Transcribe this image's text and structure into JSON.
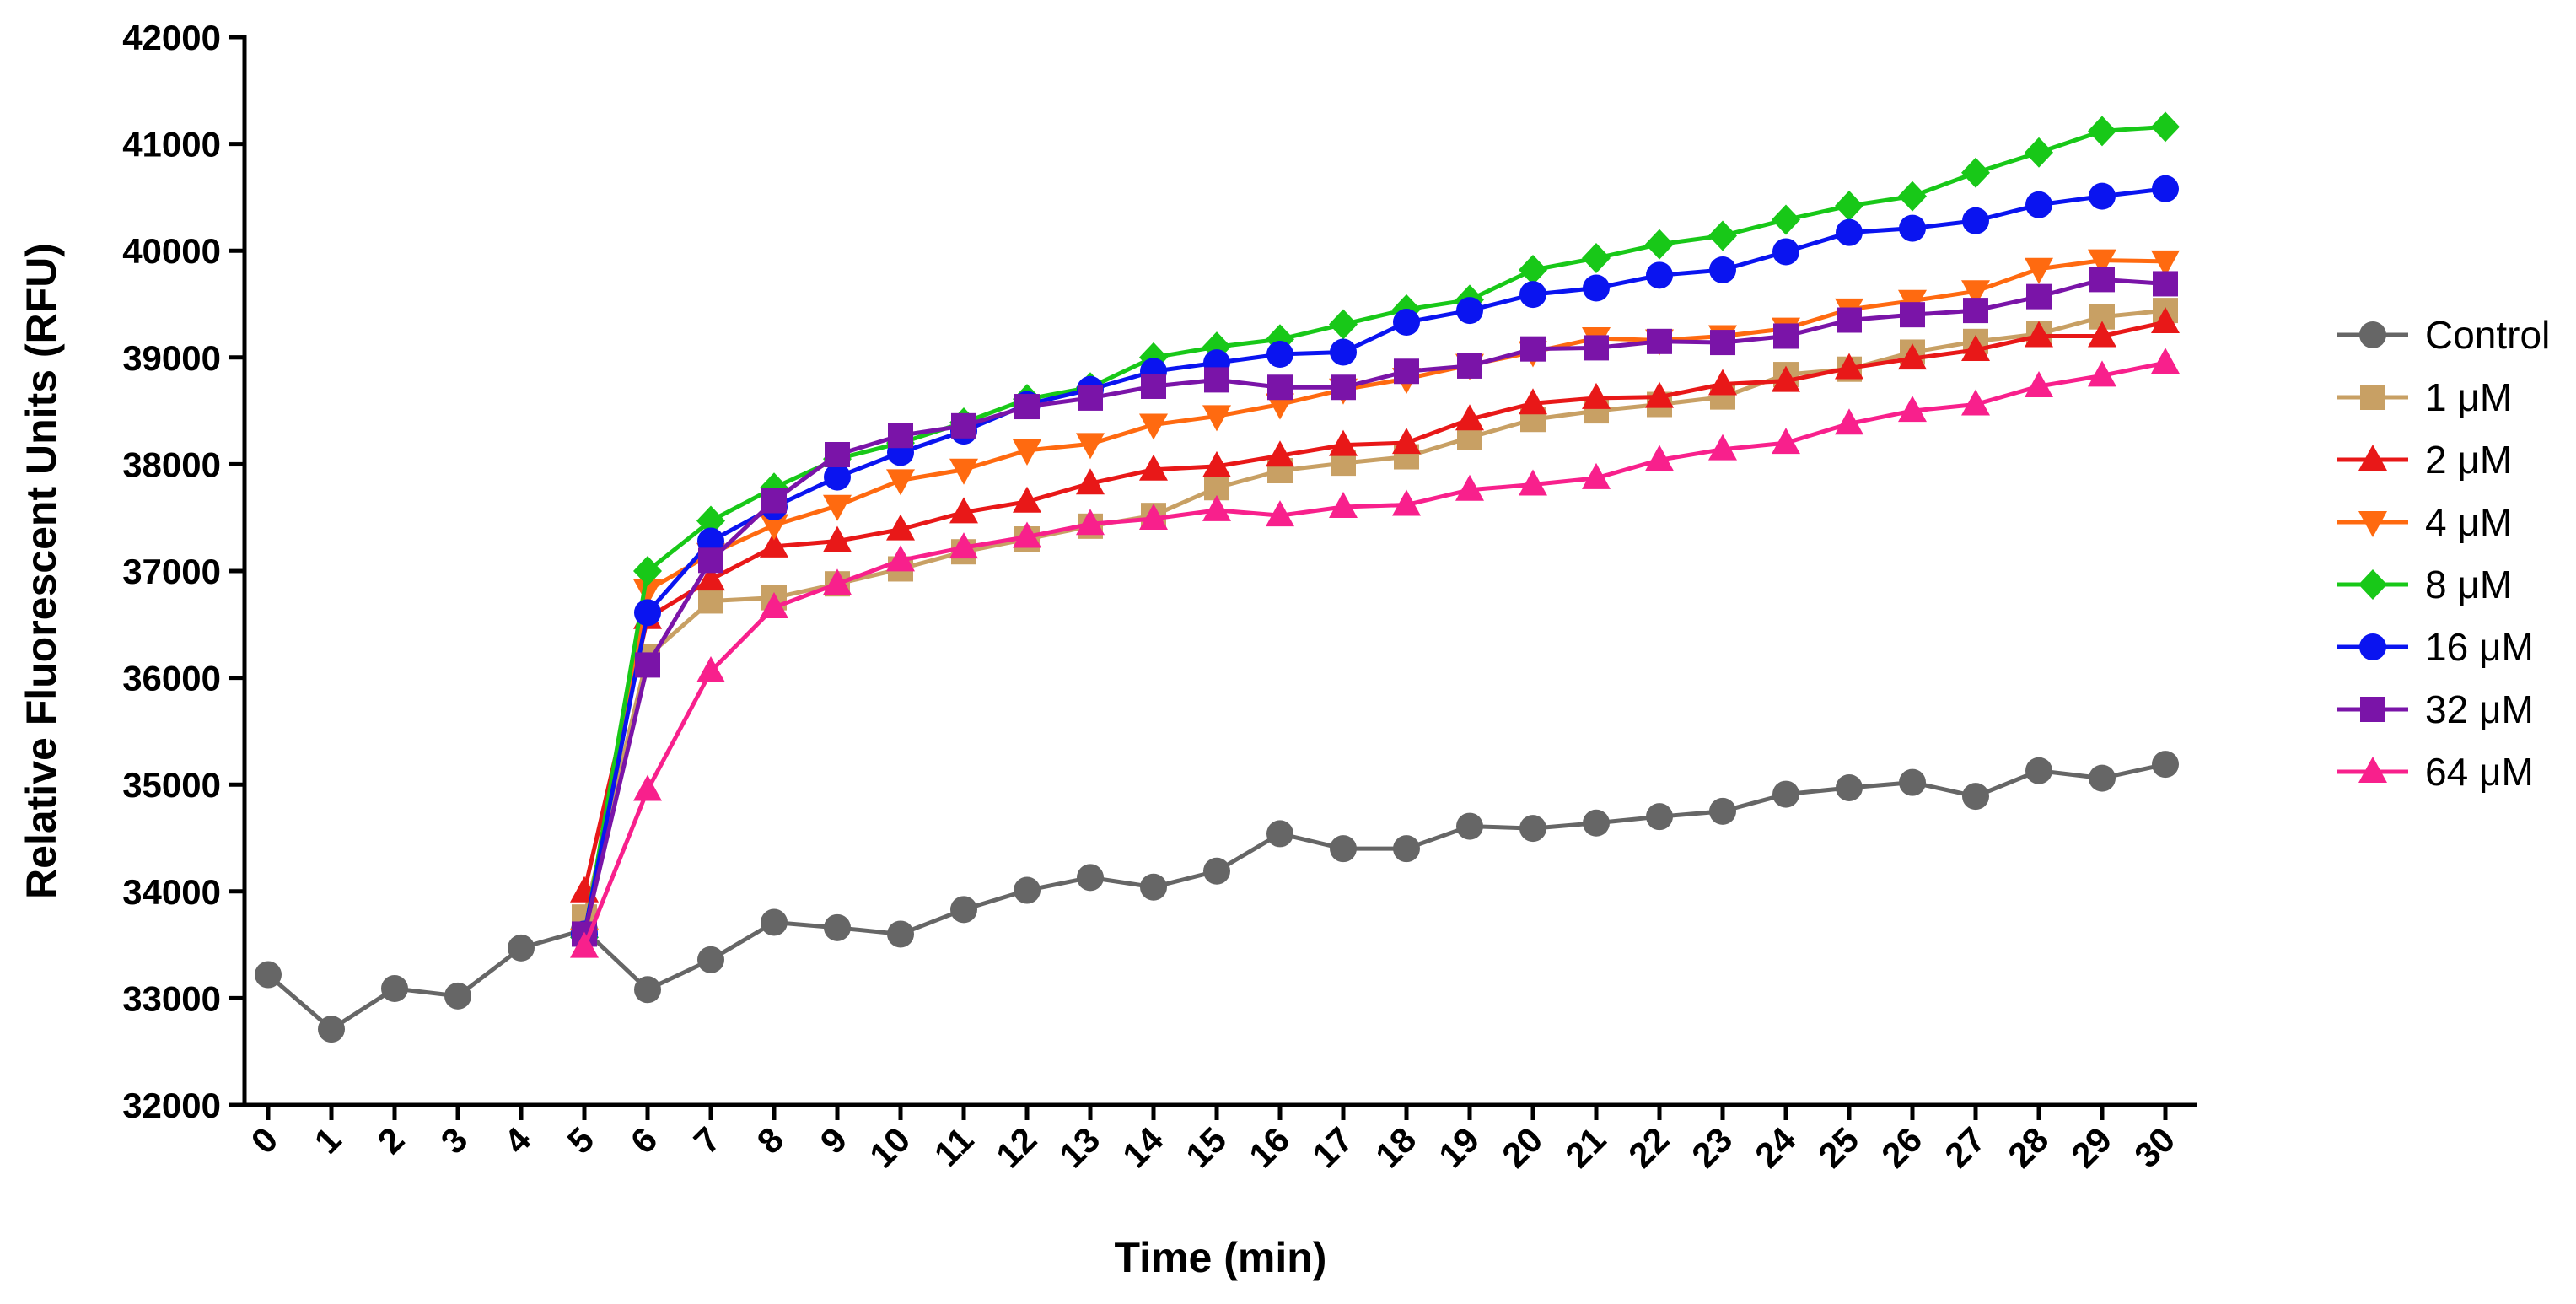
{
  "chart_data": {
    "type": "line",
    "title": "",
    "xlabel": "Time (min)",
    "ylabel": "Relative Fluorescent Units (RFU)",
    "xlim": [
      0,
      30
    ],
    "ylim": [
      32000,
      42000
    ],
    "x_ticks": [
      0,
      1,
      2,
      3,
      4,
      5,
      6,
      7,
      8,
      9,
      10,
      11,
      12,
      13,
      14,
      15,
      16,
      17,
      18,
      19,
      20,
      21,
      22,
      23,
      24,
      25,
      26,
      27,
      28,
      29,
      30
    ],
    "y_ticks": [
      32000,
      33000,
      34000,
      35000,
      36000,
      37000,
      38000,
      39000,
      40000,
      41000,
      42000
    ],
    "grid": false,
    "legend_position": "right",
    "series": [
      {
        "name": "Control",
        "color": "#666666",
        "marker": "circle",
        "x": [
          0,
          1,
          2,
          3,
          4,
          5,
          6,
          7,
          8,
          9,
          10,
          11,
          12,
          13,
          14,
          15,
          16,
          17,
          18,
          19,
          20,
          21,
          22,
          23,
          24,
          25,
          26,
          27,
          28,
          29,
          30
        ],
        "values": [
          33220,
          32710,
          33090,
          33020,
          33470,
          33640,
          33080,
          33360,
          33710,
          33660,
          33600,
          33830,
          34010,
          34130,
          34040,
          34190,
          34540,
          34400,
          34400,
          34610,
          34590,
          34640,
          34700,
          34750,
          34910,
          34970,
          35020,
          34890,
          35130,
          35060,
          35190
        ]
      },
      {
        "name": "1 μM",
        "color": "#C8A064",
        "marker": "square",
        "x": [
          5,
          6,
          7,
          8,
          9,
          10,
          11,
          12,
          13,
          14,
          15,
          16,
          17,
          18,
          19,
          20,
          21,
          22,
          23,
          24,
          25,
          26,
          27,
          28,
          29,
          30
        ],
        "values": [
          33760,
          36200,
          36720,
          36750,
          36880,
          37020,
          37180,
          37300,
          37420,
          37520,
          37780,
          37940,
          38010,
          38070,
          38250,
          38420,
          38500,
          38560,
          38630,
          38840,
          38890,
          39050,
          39150,
          39220,
          39380,
          39440
        ]
      },
      {
        "name": "2 μM",
        "color": "#E81818",
        "marker": "triangle-up",
        "x": [
          5,
          6,
          7,
          8,
          9,
          10,
          11,
          12,
          13,
          14,
          15,
          16,
          17,
          18,
          19,
          20,
          21,
          22,
          23,
          24,
          25,
          26,
          27,
          28,
          29,
          30
        ],
        "values": [
          34000,
          36560,
          36920,
          37230,
          37280,
          37390,
          37550,
          37650,
          37820,
          37950,
          37980,
          38080,
          38180,
          38200,
          38420,
          38570,
          38620,
          38630,
          38750,
          38780,
          38900,
          38990,
          39070,
          39200,
          39200,
          39330
        ]
      },
      {
        "name": "4 μM",
        "color": "#FF6A10",
        "marker": "triangle-down",
        "x": [
          5,
          6,
          7,
          8,
          9,
          10,
          11,
          12,
          13,
          14,
          15,
          16,
          17,
          18,
          19,
          20,
          21,
          22,
          23,
          24,
          25,
          26,
          27,
          28,
          29,
          30
        ],
        "values": [
          33550,
          36820,
          37160,
          37430,
          37610,
          37850,
          37950,
          38130,
          38190,
          38370,
          38450,
          38560,
          38700,
          38800,
          38930,
          39050,
          39180,
          39160,
          39200,
          39270,
          39450,
          39530,
          39620,
          39830,
          39910,
          39900
        ]
      },
      {
        "name": "8 μM",
        "color": "#18C818",
        "marker": "diamond",
        "x": [
          5,
          6,
          7,
          8,
          9,
          10,
          11,
          12,
          13,
          14,
          15,
          16,
          17,
          18,
          19,
          20,
          21,
          22,
          23,
          24,
          25,
          26,
          27,
          28,
          29,
          30
        ],
        "values": [
          33570,
          37000,
          37470,
          37780,
          38050,
          38200,
          38390,
          38610,
          38720,
          39000,
          39100,
          39170,
          39310,
          39450,
          39540,
          39820,
          39930,
          40060,
          40140,
          40290,
          40420,
          40510,
          40730,
          40920,
          41120,
          41160
        ]
      },
      {
        "name": "16 μM",
        "color": "#0A14F0",
        "marker": "circle",
        "x": [
          5,
          6,
          7,
          8,
          9,
          10,
          11,
          12,
          13,
          14,
          15,
          16,
          17,
          18,
          19,
          20,
          21,
          22,
          23,
          24,
          25,
          26,
          27,
          28,
          29,
          30
        ],
        "values": [
          33600,
          36610,
          37280,
          37600,
          37880,
          38110,
          38310,
          38560,
          38700,
          38870,
          38950,
          39030,
          39050,
          39330,
          39440,
          39590,
          39650,
          39770,
          39820,
          39990,
          40170,
          40210,
          40280,
          40430,
          40510,
          40580
        ]
      },
      {
        "name": "32 μM",
        "color": "#7A14A8",
        "marker": "square",
        "x": [
          5,
          6,
          7,
          8,
          9,
          10,
          11,
          12,
          13,
          14,
          15,
          16,
          17,
          18,
          19,
          20,
          21,
          22,
          23,
          24,
          25,
          26,
          27,
          28,
          29,
          30
        ],
        "values": [
          33600,
          36120,
          37100,
          37660,
          38090,
          38270,
          38360,
          38540,
          38620,
          38730,
          38790,
          38720,
          38720,
          38870,
          38920,
          39080,
          39090,
          39150,
          39140,
          39200,
          39350,
          39400,
          39440,
          39570,
          39730,
          39690
        ]
      },
      {
        "name": "64 μM",
        "color": "#F8208C",
        "marker": "triangle-up",
        "x": [
          5,
          6,
          7,
          8,
          9,
          10,
          11,
          12,
          13,
          14,
          15,
          16,
          17,
          18,
          19,
          20,
          21,
          22,
          23,
          24,
          25,
          26,
          27,
          28,
          29,
          30
        ],
        "values": [
          33480,
          34950,
          36060,
          36660,
          36880,
          37100,
          37220,
          37320,
          37440,
          37490,
          37570,
          37520,
          37600,
          37620,
          37760,
          37810,
          37870,
          38040,
          38140,
          38200,
          38380,
          38500,
          38560,
          38730,
          38830,
          38950
        ]
      }
    ]
  }
}
